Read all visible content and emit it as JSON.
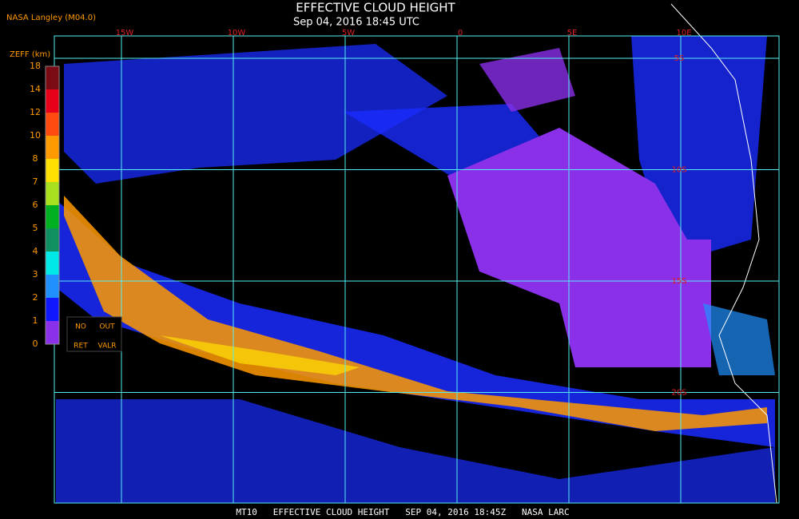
{
  "header": {
    "title": "EFFECTIVE CLOUD HEIGHT",
    "subtitle": "Sep 04, 2016 18:45 UTC",
    "credit": "NASA Langley (M04.0)"
  },
  "map": {
    "longitude_labels": [
      "15W",
      "10W",
      "5W",
      "0",
      "5E",
      "10E"
    ],
    "latitude_labels": [
      "5S",
      "10S",
      "15S",
      "20S"
    ]
  },
  "legend": {
    "title": "ZEFF (km)",
    "levels": [
      "18",
      "14",
      "12",
      "10",
      "8",
      "7",
      "6",
      "5",
      "4",
      "3",
      "2",
      "1",
      "0"
    ],
    "colors": [
      "#7a0a14",
      "#e8001a",
      "#ff4a10",
      "#ff9a00",
      "#ffe000",
      "#a8e020",
      "#00b020",
      "#109060",
      "#00e8e8",
      "#2090ff",
      "#1018ff",
      "#8a30e8"
    ],
    "no_ret": [
      "NO",
      "RET"
    ],
    "out_valr": [
      "OUT",
      "VALR"
    ]
  },
  "footer": {
    "caption": "MT10   EFFECTIVE CLOUD HEIGHT   SEP 04, 2016 18:45Z   NASA LARC"
  }
}
